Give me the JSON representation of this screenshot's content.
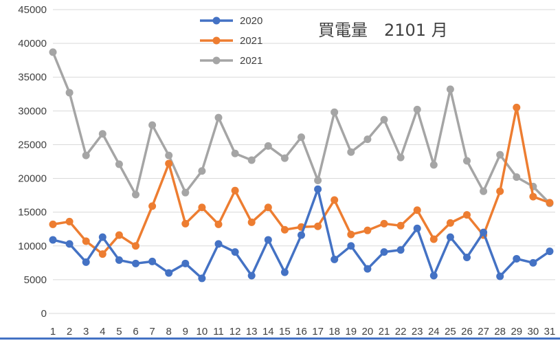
{
  "chart_data": {
    "type": "line",
    "title": "買電量　2101 月",
    "categories": [
      "1",
      "2",
      "3",
      "4",
      "5",
      "6",
      "7",
      "8",
      "9",
      "10",
      "11",
      "12",
      "13",
      "14",
      "15",
      "16",
      "17",
      "18",
      "19",
      "20",
      "21",
      "22",
      "23",
      "24",
      "25",
      "26",
      "27",
      "28",
      "29",
      "30",
      "31"
    ],
    "ylim": [
      0,
      45000
    ],
    "y_ticks": [
      "0",
      "5000",
      "10000",
      "15000",
      "20000",
      "25000",
      "30000",
      "35000",
      "40000",
      "45000"
    ],
    "grid": "horizontal",
    "legend_position": "top-center",
    "series": [
      {
        "name": "2020",
        "color": "#4472c4",
        "values": [
          10900,
          10300,
          7600,
          11300,
          7900,
          7400,
          7700,
          6000,
          7400,
          5200,
          10300,
          9100,
          5600,
          10900,
          6100,
          11600,
          18400,
          8000,
          10000,
          6600,
          9100,
          9400,
          12600,
          5600,
          11300,
          8300,
          12000,
          5500,
          8100,
          7500,
          9200
        ]
      },
      {
        "name": "2021",
        "color": "#ed7d31",
        "values": [
          13200,
          13600,
          10700,
          8800,
          11600,
          10000,
          15900,
          22200,
          13300,
          15700,
          13200,
          18200,
          13500,
          15700,
          12400,
          12800,
          12900,
          16800,
          11700,
          12300,
          13300,
          13000,
          15300,
          11000,
          13400,
          14600,
          11600,
          18100,
          30500,
          17300,
          16400
        ]
      },
      {
        "name": "2021",
        "color": "#a5a5a5",
        "values": [
          38700,
          32700,
          23400,
          26600,
          22100,
          17600,
          27900,
          23400,
          17900,
          21100,
          29000,
          23700,
          22700,
          24800,
          23000,
          26100,
          19700,
          29800,
          23900,
          25800,
          28700,
          23100,
          30200,
          22000,
          33200,
          22600,
          18100,
          23500,
          20200,
          18800,
          16300
        ]
      }
    ]
  }
}
